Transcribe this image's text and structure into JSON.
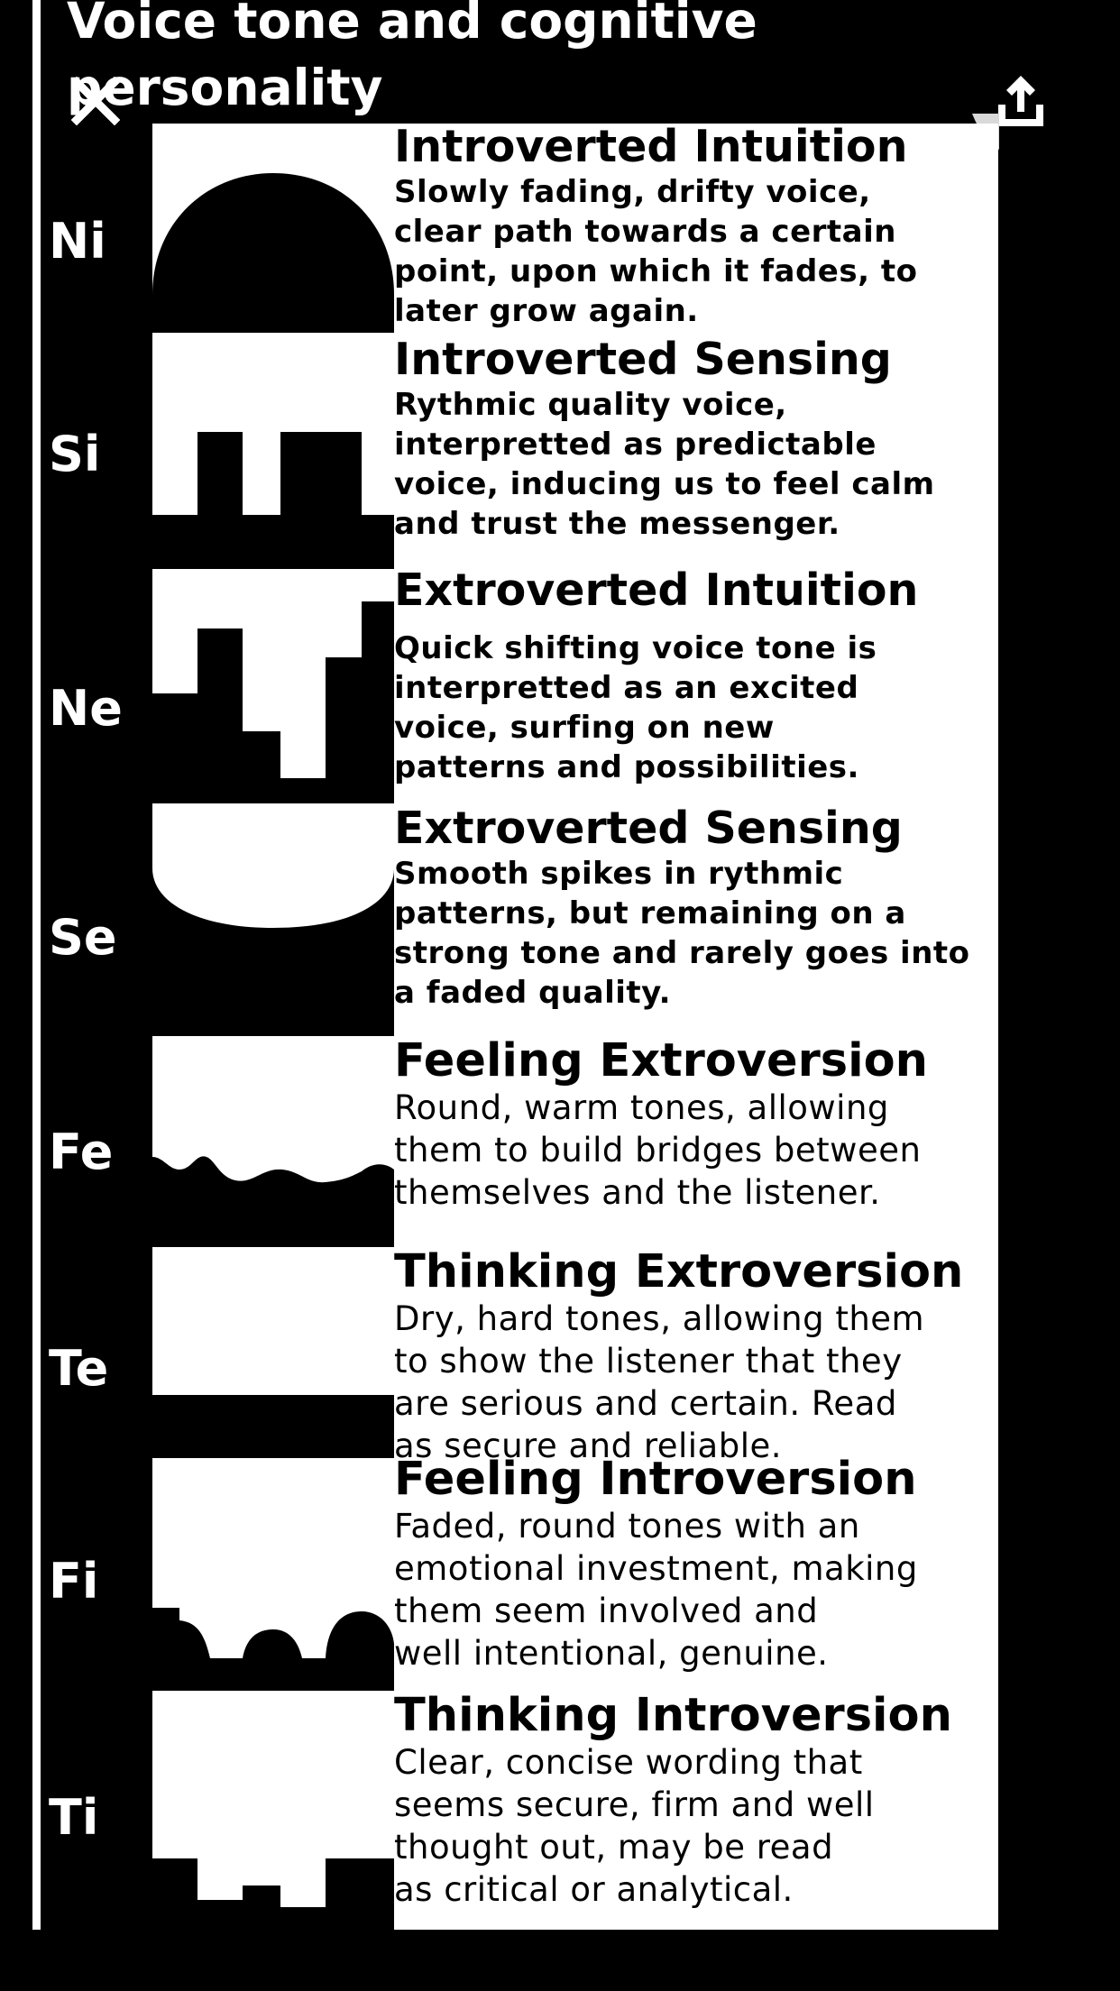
{
  "title": "Voice tone and cognitive personality",
  "functions": [
    {
      "code": "Ni",
      "heading": "Introverted Intuition",
      "lines": [
        "Slowly fading, drifty voice,",
        "clear path towards a certain",
        "point, upon which it fades, to",
        "later grow again."
      ]
    },
    {
      "code": "Si",
      "heading": "Introverted Sensing",
      "lines": [
        "Rythmic quality voice,",
        "interpretted as predictable",
        "voice, inducing us to feel calm",
        "and trust the messenger."
      ]
    },
    {
      "code": "Ne",
      "heading": "Extroverted Intuition",
      "lines": [
        "Quick shifting voice tone is",
        "interpretted as an excited",
        "voice, surfing on new",
        "patterns and possibilities."
      ]
    },
    {
      "code": "Se",
      "heading": "Extroverted Sensing",
      "lines": [
        "Smooth spikes in rythmic",
        "patterns, but remaining on a",
        "strong tone and rarely goes into",
        "a faded quality."
      ]
    },
    {
      "code": "Fe",
      "heading": "Feeling Extroversion",
      "lines": [
        "Round, warm tones, allowing",
        "them to build bridges between",
        "themselves and the listener."
      ]
    },
    {
      "code": "Te",
      "heading": "Thinking Extroversion",
      "lines": [
        "Dry, hard tones, allowing them",
        "to show the listener that they",
        "are serious and certain. Read",
        "as secure and reliable."
      ]
    },
    {
      "code": "Fi",
      "heading": "Feeling Introversion",
      "lines": [
        "Faded, round tones with an",
        "emotional investment, making",
        "them seem involved and",
        "well intentional, genuine."
      ]
    },
    {
      "code": "Ti",
      "heading": "Thinking Introversion",
      "lines": [
        "Clear, concise wording that",
        "seems secure, firm and  well",
        "thought out, may be read",
        "as critical or analytical."
      ]
    }
  ],
  "icons": {
    "close": "close-icon",
    "share": "share-icon"
  },
  "colors": {
    "background": "#000000",
    "panel": "#ffffff",
    "text": "#000000"
  }
}
